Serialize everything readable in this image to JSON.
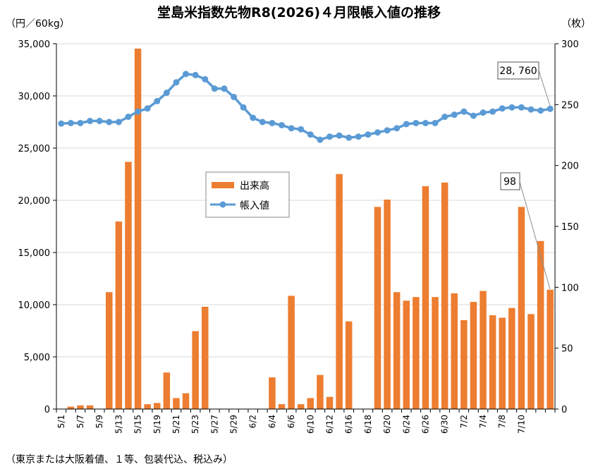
{
  "chart_data": {
    "type": "bar+line",
    "title": "堂島米指数先物R8(2026)４月限帳入値の推移",
    "left_axis_unit": "（円／60kg）",
    "right_axis_unit": "（枚）",
    "footnote": "（東京または大阪着値、１等、包装代込、税込み）",
    "left_ylim": [
      0,
      35000
    ],
    "left_ticks": [
      "0",
      "5,000",
      "10,000",
      "15,000",
      "20,000",
      "25,000",
      "30,000",
      "35,000"
    ],
    "right_ylim": [
      0,
      300
    ],
    "right_ticks": [
      "0",
      "50",
      "100",
      "150",
      "200",
      "250",
      "300"
    ],
    "x_tick_labels": [
      "5/1",
      "5/7",
      "5/9",
      "5/13",
      "5/15",
      "5/19",
      "5/21",
      "5/23",
      "5/27",
      "5/29",
      "6/2",
      "6/4",
      "6/6",
      "6/10",
      "6/12",
      "6/16",
      "6/18",
      "6/20",
      "6/24",
      "6/26",
      "6/30",
      "7/2",
      "7/4",
      "7/8",
      "7/10"
    ],
    "legend": [
      "出来高",
      "帳入値"
    ],
    "legend_position": "center",
    "series_colors": {
      "bars": "#ed7d31",
      "line": "#5b9bd5"
    },
    "series": [
      {
        "name": "出来高",
        "axis": "right",
        "type": "bar",
        "values": [
          0,
          2,
          3,
          3,
          0,
          96,
          154,
          203,
          296,
          4,
          5,
          30,
          9,
          13,
          64,
          84,
          0,
          0,
          0,
          0,
          0,
          0,
          26,
          4,
          93,
          4,
          9,
          28,
          10,
          193,
          72,
          0,
          0,
          166,
          172,
          96,
          89,
          92,
          183,
          92,
          186,
          95,
          73,
          88,
          97,
          77,
          75,
          83,
          166,
          78,
          138,
          98
        ]
      },
      {
        "name": "帳入値",
        "axis": "left",
        "type": "line",
        "values": [
          27350,
          27400,
          27400,
          27600,
          27600,
          27500,
          27500,
          28000,
          28500,
          28800,
          29500,
          30300,
          31300,
          32100,
          32000,
          31600,
          30700,
          30700,
          29900,
          28900,
          27900,
          27500,
          27400,
          27200,
          26900,
          26800,
          26300,
          25800,
          26100,
          26200,
          26000,
          26100,
          26300,
          26500,
          26700,
          26900,
          27300,
          27400,
          27400,
          27400,
          28000,
          28200,
          28500,
          28100,
          28400,
          28500,
          28800,
          28900,
          28900,
          28700,
          28600,
          28760
        ]
      }
    ],
    "annotations": [
      {
        "text": "28, 760",
        "series": "帳入値",
        "index": 51
      },
      {
        "text": "98",
        "series": "出来高",
        "index": 51
      }
    ]
  }
}
